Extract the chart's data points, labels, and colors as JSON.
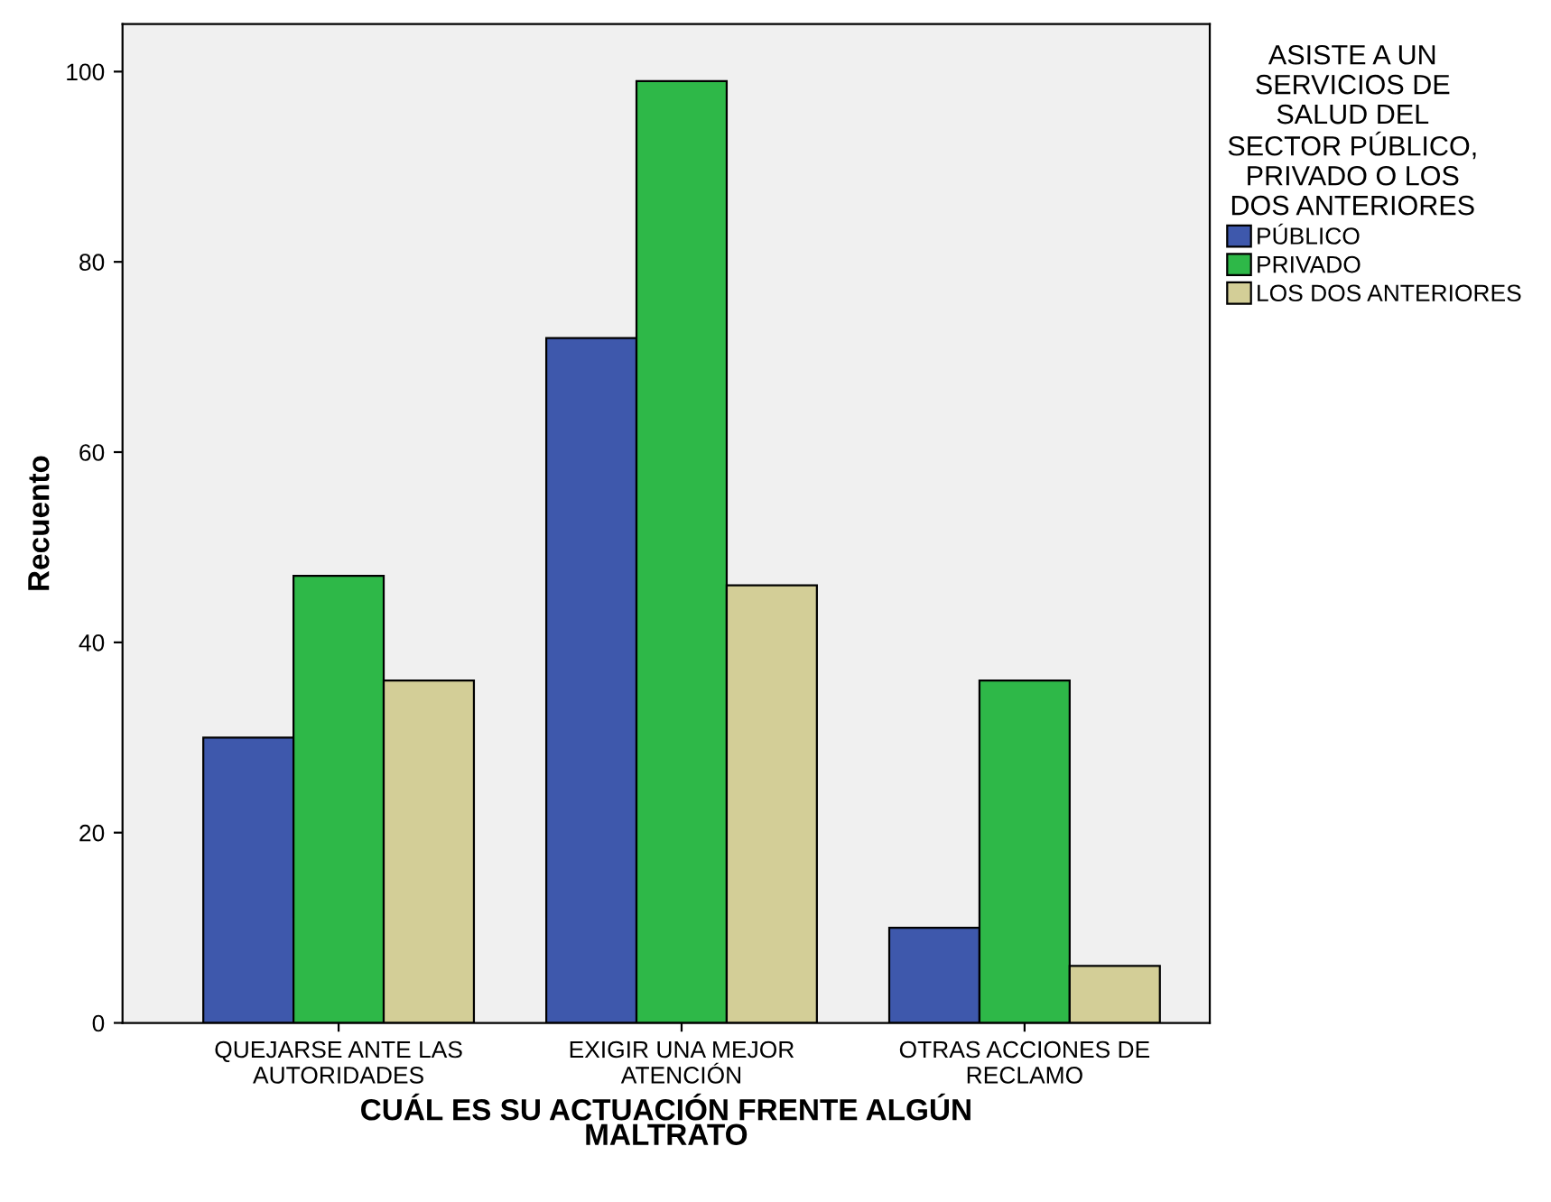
{
  "chart_data": {
    "type": "bar",
    "xlabel": "CUÁL ES SU ACTUACIÓN FRENTE ALGÚN\nMALTRATO",
    "ylabel": "Recuento",
    "legend_title": "ASISTE A UN\nSERVICIOS DE\nSALUD DEL\nSECTOR PÚBLICO,\nPRIVADO O LOS\nDOS ANTERIORES",
    "categories": [
      "QUEJARSE ANTE LAS\nAUTORIDADES",
      "EXIGIR UNA MEJOR\nATENCIÓN",
      "OTRAS ACCIONES DE\nRECLAMO"
    ],
    "series": [
      {
        "name": "PÚBLICO",
        "color": "#3e58ac",
        "values": [
          30,
          72,
          10
        ]
      },
      {
        "name": "PRIVADO",
        "color": "#2eb848",
        "values": [
          47,
          99,
          36
        ]
      },
      {
        "name": "LOS DOS ANTERIORES",
        "color": "#d3ce97",
        "values": [
          36,
          46,
          6
        ]
      }
    ],
    "ylim": [
      0,
      105
    ],
    "yticks": [
      0,
      20,
      40,
      60,
      80,
      100
    ],
    "grid": false,
    "legend": "right"
  }
}
